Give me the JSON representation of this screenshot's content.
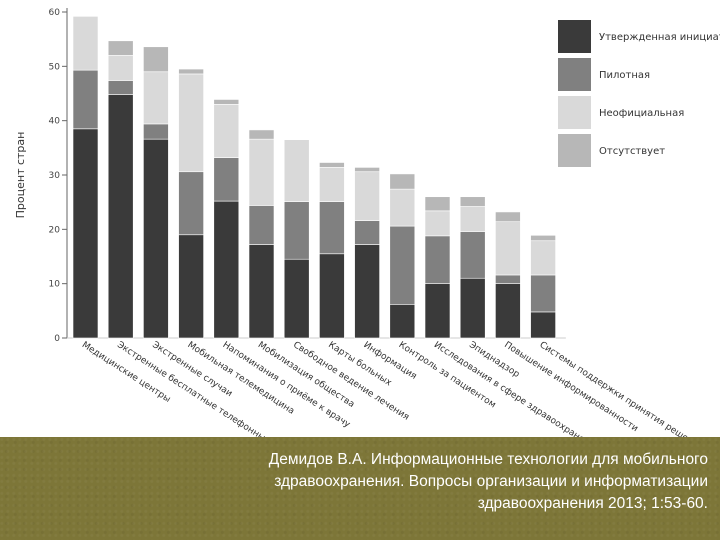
{
  "chart_data": {
    "type": "stacked-bar",
    "ylabel": "Процент стран",
    "ylim": [
      0,
      60
    ],
    "yticks": [
      0,
      10,
      20,
      30,
      40,
      50,
      60
    ],
    "legend_position": "right",
    "categories": [
      "Медицинские центры",
      "Экстренные бесплатные телефонные службы",
      "Экстренные случаи",
      "Мобильная телемедицина",
      "Напоминания о приёме к врачу",
      "Мобилизация общества",
      "Свободное ведение лечения",
      "Карты больных",
      "Информация",
      "Контроль за пациентом",
      "Исследования в сфере здравоохранения",
      "Эпиднадзор",
      "Повышение информированности",
      "Системы поддержки принятия решений"
    ],
    "series": [
      {
        "name": "Утвержденная инициатива",
        "color": "#3a3a3a",
        "values": [
          38.5,
          44.8,
          36.6,
          19.0,
          25.2,
          17.2,
          14.5,
          15.5,
          17.2,
          6.2,
          10.0,
          11.0,
          10.0,
          4.8
        ]
      },
      {
        "name": "Пилотная",
        "color": "#808080",
        "values": [
          10.8,
          2.6,
          2.8,
          11.6,
          8.0,
          7.2,
          10.6,
          9.6,
          4.4,
          14.4,
          8.8,
          8.6,
          1.6,
          6.8
        ]
      },
      {
        "name": "Неофициальная",
        "color": "#d9d9d9",
        "values": [
          9.9,
          4.6,
          9.6,
          18.0,
          9.8,
          12.2,
          11.4,
          6.3,
          9.0,
          6.8,
          4.6,
          4.6,
          9.8,
          6.3
        ]
      },
      {
        "name": "Отсутствует",
        "color": "#b7b7b7",
        "values": [
          0,
          2.7,
          4.6,
          0.9,
          0.9,
          1.7,
          0,
          0.9,
          0.8,
          2.8,
          2.6,
          1.8,
          1.8,
          1.0
        ]
      }
    ]
  },
  "footer": {
    "citation_lines": [
      "Демидов В.А. Информационные технологии для мобильного",
      "здравоохранения. Вопросы организации и информатизации",
      "здравоохранения 2013; 1:53-60."
    ]
  }
}
